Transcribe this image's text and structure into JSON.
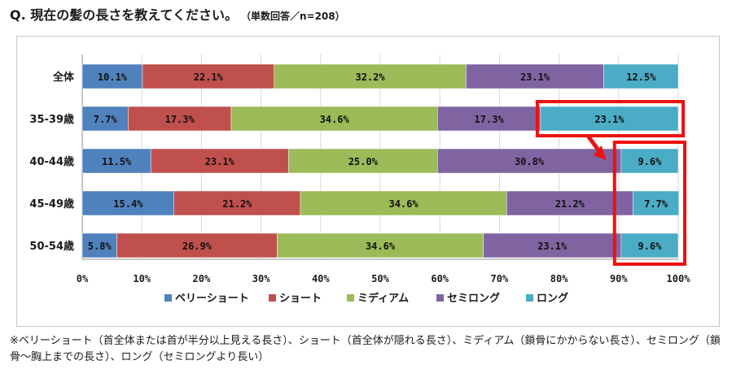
{
  "title": {
    "question": "Q. 現在の髪の長さを教えてください。",
    "note": "（単数回答／n=208）"
  },
  "chart_data": {
    "type": "bar",
    "orientation": "horizontal-stacked-100",
    "categories": [
      "全体",
      "35-39歳",
      "40-44歳",
      "45-49歳",
      "50-54歳"
    ],
    "series": [
      {
        "name": "ベリーショート",
        "color": "#4f81bd",
        "values": [
          10.1,
          7.7,
          11.5,
          15.4,
          5.8
        ],
        "labels": [
          "10.1%",
          "7.7%",
          "11.5%",
          "15.4%",
          "5.8%"
        ]
      },
      {
        "name": "ショート",
        "color": "#c0504d",
        "values": [
          22.1,
          17.3,
          23.1,
          21.2,
          26.9
        ],
        "labels": [
          "22.1%",
          "17.3%",
          "23.1%",
          "21.2%",
          "26.9%"
        ]
      },
      {
        "name": "ミディアム",
        "color": "#9bbb59",
        "values": [
          32.2,
          34.6,
          25.0,
          34.6,
          34.6
        ],
        "labels": [
          "32.2%",
          "34.6%",
          "25.0%",
          "34.6%",
          "34.6%"
        ]
      },
      {
        "name": "セミロング",
        "color": "#8064a2",
        "values": [
          23.1,
          17.3,
          30.8,
          21.2,
          23.1
        ],
        "labels": [
          "23.1%",
          "17.3%",
          "30.8%",
          "21.2%",
          "23.1%"
        ]
      },
      {
        "name": "ロング",
        "color": "#4bacc6",
        "values": [
          12.5,
          23.1,
          9.6,
          7.7,
          9.6
        ],
        "labels": [
          "12.5%",
          "23.1%",
          "9.6%",
          "7.7%",
          "9.6%"
        ]
      }
    ],
    "xlim": [
      0,
      100
    ],
    "xticks": [
      "0%",
      "10%",
      "20%",
      "30%",
      "40%",
      "50%",
      "60%",
      "70%",
      "80%",
      "90%",
      "100%"
    ],
    "legend_position": "bottom",
    "grid": true,
    "highlight_color": "#ee1111",
    "gridline_color": "#d9d9d9"
  },
  "footnote": "※ベリーショート（首全体または首が半分以上見える長さ）、ショート（首全体が隠れる長さ）、ミディアム（鎖骨にかからない長さ）、セミロング（鎖骨〜胸上までの長さ）、ロング（セミロングより長い）"
}
